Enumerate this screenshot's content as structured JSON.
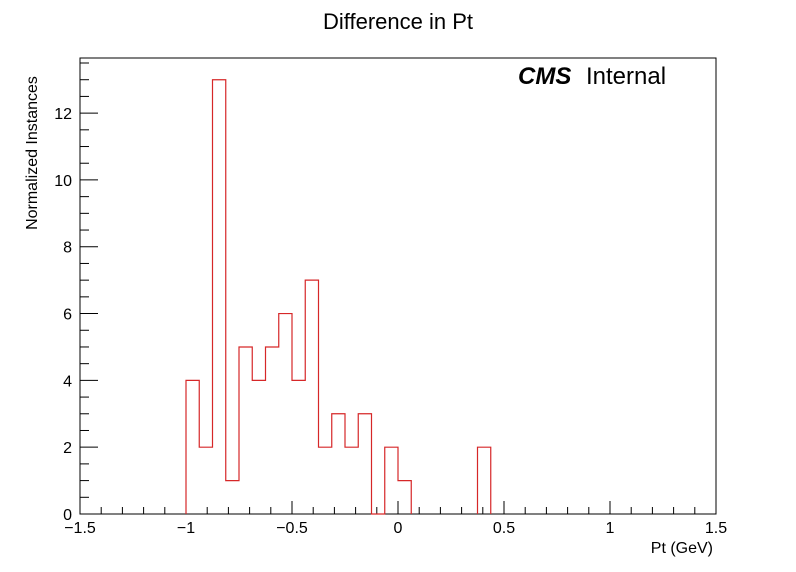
{
  "chart_data": {
    "type": "bar",
    "histogram": true,
    "title": "Difference in Pt",
    "xlabel": "Pt (GeV)",
    "ylabel": "Normalized Instances",
    "xlim": [
      -1.5,
      1.5
    ],
    "ylim": [
      0,
      13.65
    ],
    "bin_width": 0.0625,
    "bin_low_edges": [
      -1.0,
      -0.9375,
      -0.875,
      -0.8125,
      -0.75,
      -0.6875,
      -0.625,
      -0.5625,
      -0.5,
      -0.4375,
      -0.375,
      -0.3125,
      -0.25,
      -0.1875,
      -0.125,
      -0.0625,
      0.0,
      0.375
    ],
    "values": [
      4,
      2,
      13,
      1,
      5,
      4,
      5,
      6,
      4,
      7,
      2,
      3,
      2,
      3,
      0,
      2,
      1,
      2
    ],
    "x_ticks": [
      "−1.5",
      "−1",
      "−0.5",
      "0",
      "0.5",
      "1",
      "1.5"
    ],
    "x_tick_values": [
      -1.5,
      -1,
      -0.5,
      0,
      0.5,
      1,
      1.5
    ],
    "y_ticks": [
      "0",
      "2",
      "4",
      "6",
      "8",
      "10",
      "12"
    ],
    "y_tick_values": [
      0,
      2,
      4,
      6,
      8,
      10,
      12
    ],
    "line_color": "#d62728",
    "grid": false,
    "legend": "none"
  },
  "label": {
    "cms": "CMS",
    "internal": "Internal"
  }
}
